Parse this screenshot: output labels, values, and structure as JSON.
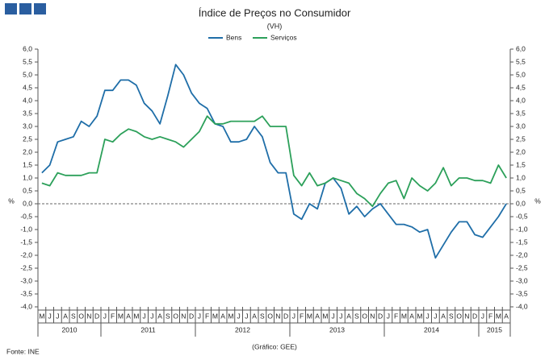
{
  "chart_data": {
    "type": "line",
    "title": "Índice de Preços no Consumidor",
    "subtitle": "(VH)",
    "y_label": "%",
    "y2_label": "%",
    "source": "Fonte: INE",
    "credit": "(Gráfico: GEE)",
    "categories": [
      "M",
      "J",
      "J",
      "A",
      "S",
      "O",
      "N",
      "D",
      "J",
      "F",
      "M",
      "A",
      "M",
      "J",
      "J",
      "A",
      "S",
      "O",
      "N",
      "D",
      "J",
      "F",
      "M",
      "A",
      "M",
      "J",
      "J",
      "A",
      "S",
      "O",
      "N",
      "D",
      "J",
      "F",
      "M",
      "A",
      "M",
      "J",
      "J",
      "A",
      "S",
      "O",
      "N",
      "D",
      "J",
      "F",
      "M",
      "A",
      "M",
      "J",
      "J",
      "A",
      "S",
      "O",
      "N",
      "D",
      "J",
      "F",
      "M",
      "A"
    ],
    "years": [
      "2010",
      "2011",
      "2012",
      "2013",
      "2014",
      "2015"
    ],
    "series": [
      {
        "name": "Bens",
        "color": "#1f6ea8",
        "values": [
          1.2,
          1.5,
          2.4,
          2.5,
          2.6,
          3.2,
          3.0,
          3.4,
          4.4,
          4.4,
          4.8,
          4.8,
          4.6,
          3.9,
          3.6,
          3.1,
          4.2,
          5.4,
          5.0,
          4.3,
          3.9,
          3.7,
          3.1,
          3.0,
          2.4,
          2.4,
          2.5,
          3.0,
          2.6,
          1.6,
          1.2,
          1.2,
          -0.4,
          -0.6,
          0.0,
          -0.2,
          0.8,
          1.0,
          0.6,
          -0.4,
          -0.1,
          -0.5,
          -0.2,
          0.0,
          -0.4,
          -0.8,
          -0.8,
          -0.9,
          -1.1,
          -1.0,
          -2.1,
          -1.6,
          -1.1,
          -0.7,
          -0.7,
          -1.2,
          -1.3,
          -0.9,
          -0.5,
          0.0
        ]
      },
      {
        "name": "Serviços",
        "color": "#2ca05a",
        "values": [
          0.8,
          0.7,
          1.2,
          1.1,
          1.1,
          1.1,
          1.2,
          1.2,
          2.5,
          2.4,
          2.7,
          2.9,
          2.8,
          2.6,
          2.5,
          2.6,
          2.5,
          2.4,
          2.2,
          2.5,
          2.8,
          3.4,
          3.1,
          3.1,
          3.2,
          3.2,
          3.2,
          3.2,
          3.4,
          3.0,
          3.0,
          3.0,
          1.1,
          0.7,
          1.2,
          0.7,
          0.8,
          1.0,
          0.9,
          0.8,
          0.4,
          0.2,
          -0.1,
          0.4,
          0.8,
          0.9,
          0.2,
          1.0,
          0.7,
          0.5,
          0.8,
          1.4,
          0.7,
          1.0,
          1.0,
          0.9,
          0.9,
          0.8,
          1.5,
          1.0
        ]
      }
    ],
    "ylim": [
      -4,
      6
    ],
    "yticks": [
      {
        "value": -4,
        "label": "-4,0"
      },
      {
        "value": -3.5,
        "label": "-3,5"
      },
      {
        "value": -3,
        "label": "-3,0"
      },
      {
        "value": -2.5,
        "label": "-2,5"
      },
      {
        "value": -2,
        "label": "-2,0"
      },
      {
        "value": -1.5,
        "label": "-1,5"
      },
      {
        "value": -1,
        "label": "-1,0"
      },
      {
        "value": -0.5,
        "label": "-0,5"
      },
      {
        "value": 0,
        "label": "0,0"
      },
      {
        "value": 0.5,
        "label": "0,5"
      },
      {
        "value": 1,
        "label": "1,0"
      },
      {
        "value": 1.5,
        "label": "1,5"
      },
      {
        "value": 2,
        "label": "2,0"
      },
      {
        "value": 2.5,
        "label": "2,5"
      },
      {
        "value": 3,
        "label": "3,0"
      },
      {
        "value": 3.5,
        "label": "3,5"
      },
      {
        "value": 4,
        "label": "4,0"
      },
      {
        "value": 4.5,
        "label": "4,5"
      },
      {
        "value": 5,
        "label": "5,0"
      },
      {
        "value": 5.5,
        "label": "5,5"
      },
      {
        "value": 6,
        "label": "6,0"
      }
    ],
    "y2lim": [
      -4,
      6
    ],
    "y2ticks": [
      {
        "value": -4,
        "label": "-4,0"
      },
      {
        "value": -3.5,
        "label": "-3,5"
      },
      {
        "value": -3,
        "label": "-3,0"
      },
      {
        "value": -2.5,
        "label": "-2,5"
      },
      {
        "value": -2,
        "label": "-2,0"
      },
      {
        "value": -1.5,
        "label": "-1,5"
      },
      {
        "value": -1,
        "label": "-1,0"
      },
      {
        "value": -0.5,
        "label": "-0,5"
      },
      {
        "value": 0,
        "label": "0,0"
      },
      {
        "value": 0.5,
        "label": "0,5"
      },
      {
        "value": 1,
        "label": "1,0"
      },
      {
        "value": 1.5,
        "label": "1,5"
      },
      {
        "value": 2,
        "label": "2,0"
      },
      {
        "value": 2.5,
        "label": "2,5"
      },
      {
        "value": 3,
        "label": "3,0"
      },
      {
        "value": 3.5,
        "label": "3,5"
      },
      {
        "value": 4,
        "label": "4,0"
      },
      {
        "value": 4.5,
        "label": "4,5"
      },
      {
        "value": 5,
        "label": "5,0"
      },
      {
        "value": 5.5,
        "label": "5,5"
      },
      {
        "value": 6,
        "label": "6,0"
      }
    ],
    "zero_line": true
  }
}
